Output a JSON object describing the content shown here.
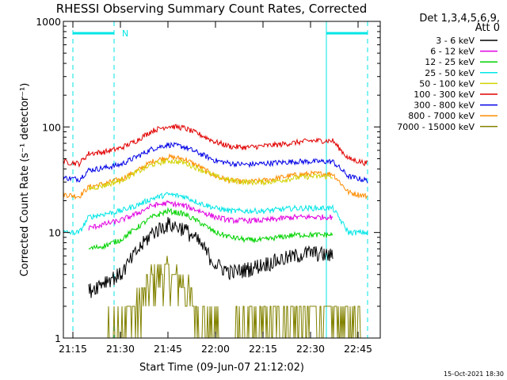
{
  "chart_data": {
    "type": "line",
    "title": "RHESSI Observing Summary Count Rates, Corrected",
    "xlabel": "Start Time (09-Jun-07 21:12:02)",
    "ylabel": "Corrected Count Rate (s⁻¹ detector⁻¹)",
    "y_scale": "log",
    "ylim": [
      1,
      1000
    ],
    "xlim": [
      "21:12",
      "22:52"
    ],
    "x_ticks": [
      "21:15",
      "21:30",
      "21:45",
      "22:00",
      "22:15",
      "22:30",
      "22:45"
    ],
    "y_ticks": [
      "1",
      "10",
      "100",
      "1000"
    ],
    "grid": false,
    "legend_header": [
      "Det 1,3,4,5,6,9,",
      "Att 0"
    ],
    "legend_position": "right",
    "timestamp": "15-Oct-2021 18:30",
    "annotations": [
      {
        "text": "N",
        "x": "21:29"
      }
    ],
    "markers": {
      "dashed_lines": [
        "21:15",
        "21:28",
        "22:48"
      ],
      "solid_lines": [
        "22:35"
      ],
      "top_bars": [
        [
          "21:15",
          "21:28"
        ],
        [
          "22:35",
          "22:48"
        ]
      ]
    },
    "series": [
      {
        "name": "3 - 6 keV",
        "color": "#000000",
        "x": [
          "21:20",
          "21:25",
          "21:30",
          "21:35",
          "21:40",
          "21:45",
          "21:50",
          "21:55",
          "22:00",
          "22:05",
          "22:10",
          "22:15",
          "22:20",
          "22:25",
          "22:30",
          "22:37"
        ],
        "values": [
          2.8,
          3.5,
          4.0,
          6.5,
          10.0,
          12.0,
          11.0,
          8.0,
          5.0,
          4.2,
          4.5,
          5.0,
          5.5,
          6.0,
          6.5,
          6.0
        ]
      },
      {
        "name": "6 - 12 keV",
        "color": "#e100e1",
        "x": [
          "21:20",
          "21:25",
          "21:30",
          "21:35",
          "21:40",
          "21:45",
          "21:50",
          "21:55",
          "22:00",
          "22:05",
          "22:10",
          "22:15",
          "22:20",
          "22:25",
          "22:30",
          "22:37"
        ],
        "values": [
          11,
          12,
          13,
          15,
          18,
          19,
          18,
          16,
          14,
          13,
          13,
          13,
          13.5,
          14,
          14,
          14
        ]
      },
      {
        "name": "12 - 25 keV",
        "color": "#00d200",
        "x": [
          "21:20",
          "21:25",
          "21:30",
          "21:35",
          "21:40",
          "21:45",
          "21:50",
          "21:55",
          "22:00",
          "22:05",
          "22:10",
          "22:15",
          "22:20",
          "22:25",
          "22:30",
          "22:37"
        ],
        "values": [
          7,
          7.5,
          8.5,
          11,
          14,
          16,
          15,
          12.5,
          10,
          9,
          8.5,
          8.5,
          9,
          9.5,
          9.5,
          9.5
        ]
      },
      {
        "name": "25 - 50 keV",
        "color": "#00e6e6",
        "x": [
          "21:12",
          "21:17",
          "21:20",
          "21:25",
          "21:30",
          "21:35",
          "21:40",
          "21:45",
          "21:50",
          "21:55",
          "22:00",
          "22:05",
          "22:10",
          "22:15",
          "22:20",
          "22:25",
          "22:30",
          "22:37",
          "22:42",
          "22:48"
        ],
        "values": [
          10,
          10,
          14,
          15,
          16,
          18,
          21,
          23,
          22,
          19,
          17,
          16,
          16,
          16,
          16.5,
          17,
          17,
          17,
          10,
          10
        ]
      },
      {
        "name": "50 - 100 keV",
        "color": "#d2d200",
        "x": [
          "21:20",
          "21:25",
          "21:30",
          "21:35",
          "21:40",
          "21:45",
          "21:50",
          "21:55",
          "22:00",
          "22:05",
          "22:10",
          "22:15",
          "22:20",
          "22:25",
          "22:30",
          "22:37"
        ],
        "values": [
          26,
          28,
          31,
          37,
          44,
          48,
          46,
          40,
          34,
          31,
          30,
          30,
          31,
          33,
          34,
          34
        ]
      },
      {
        "name": "100 - 300 keV",
        "color": "#e10000",
        "x": [
          "21:12",
          "21:17",
          "21:20",
          "21:25",
          "21:30",
          "21:35",
          "21:40",
          "21:45",
          "21:50",
          "21:55",
          "22:00",
          "22:05",
          "22:10",
          "22:15",
          "22:20",
          "22:25",
          "22:30",
          "22:37",
          "22:42",
          "22:48"
        ],
        "values": [
          47,
          45,
          56,
          58,
          63,
          74,
          92,
          102,
          98,
          85,
          72,
          65,
          64,
          66,
          68,
          71,
          74,
          74,
          50,
          45
        ]
      },
      {
        "name": "300 - 800 keV",
        "color": "#0000e6",
        "x": [
          "21:12",
          "21:17",
          "21:20",
          "21:25",
          "21:30",
          "21:35",
          "21:40",
          "21:45",
          "21:50",
          "21:55",
          "22:00",
          "22:05",
          "22:10",
          "22:15",
          "22:20",
          "22:25",
          "22:30",
          "22:37",
          "22:42",
          "22:48"
        ],
        "values": [
          33,
          32,
          39,
          41,
          44,
          52,
          62,
          68,
          65,
          56,
          48,
          45,
          44,
          45,
          46,
          47,
          47,
          47,
          34,
          31
        ]
      },
      {
        "name": "800 - 7000 keV",
        "color": "#ff8c00",
        "x": [
          "21:12",
          "21:17",
          "21:20",
          "21:25",
          "21:30",
          "21:35",
          "21:40",
          "21:45",
          "21:50",
          "21:55",
          "22:00",
          "22:05",
          "22:10",
          "22:15",
          "22:20",
          "22:25",
          "22:30",
          "22:37",
          "22:42",
          "22:48"
        ],
        "values": [
          23,
          22,
          27,
          29,
          32,
          38,
          47,
          52,
          50,
          42,
          34,
          31,
          30,
          31,
          33,
          35,
          36,
          36,
          24,
          22
        ]
      },
      {
        "name": "7000 - 15000 keV",
        "color": "#828200",
        "x": [
          "21:15",
          "21:20",
          "21:25",
          "21:30",
          "21:35",
          "21:40",
          "21:45",
          "21:50",
          "21:55",
          "22:00",
          "22:05",
          "22:10",
          "22:15",
          "22:20",
          "22:25",
          "22:30",
          "22:35",
          "22:40",
          "22:45",
          "22:48"
        ],
        "values": [
          1,
          1,
          1,
          1.5,
          1.7,
          3.5,
          4,
          3,
          1.5,
          1.2,
          1.1,
          1.2,
          1.3,
          1.5,
          1.5,
          1.5,
          1.5,
          1.5,
          1.5,
          1
        ]
      }
    ]
  }
}
